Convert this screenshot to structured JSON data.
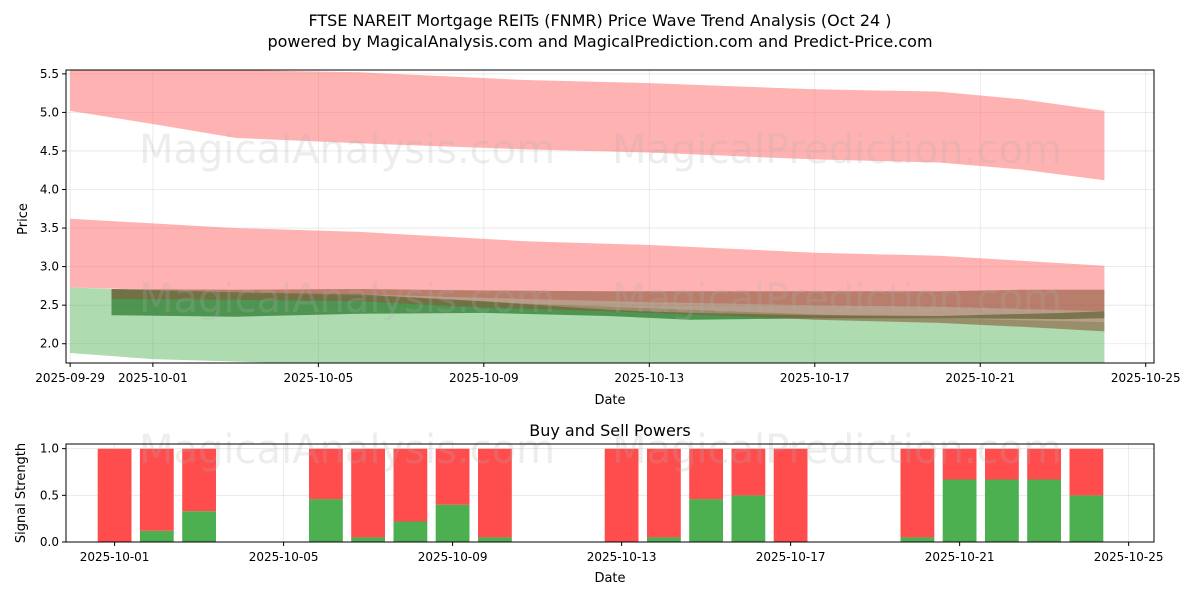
{
  "title": "FTSE NAREIT Mortgage REITs (FNMR) Price Wave Trend Analysis (Oct 24 )",
  "subtitle": "powered by MagicalAnalysis.com and MagicalPrediction.com and Predict-Price.com",
  "watermarks": [
    "MagicalAnalysis.com",
    "MagicalPrediction.com"
  ],
  "chart_data": [
    {
      "type": "area",
      "xlabel": "Date",
      "ylabel": "Price",
      "xlim": [
        "2025-09-29",
        "2025-10-25"
      ],
      "ylim": [
        1.75,
        5.55
      ],
      "x_ticks": [
        "2025-09-29",
        "2025-10-01",
        "2025-10-05",
        "2025-10-09",
        "2025-10-13",
        "2025-10-17",
        "2025-10-21",
        "2025-10-25"
      ],
      "y_ticks": [
        "2.0",
        "2.5",
        "3.0",
        "3.5",
        "4.0",
        "4.5",
        "5.0",
        "5.5"
      ],
      "grid": true,
      "series": [
        {
          "color": "#ff6666",
          "opacity": 0.5,
          "x": [
            "2025-09-29",
            "2025-10-01",
            "2025-10-03",
            "2025-10-06",
            "2025-10-10",
            "2025-10-13",
            "2025-10-17",
            "2025-10-20",
            "2025-10-22",
            "2025-10-24"
          ],
          "upper": [
            5.6,
            5.57,
            5.55,
            5.52,
            5.42,
            5.38,
            5.3,
            5.27,
            5.17,
            5.02
          ],
          "lower": [
            5.02,
            4.85,
            4.67,
            4.6,
            4.52,
            4.48,
            4.39,
            4.35,
            4.26,
            4.12
          ]
        },
        {
          "color": "#ff6666",
          "opacity": 0.5,
          "x": [
            "2025-09-29",
            "2025-10-01",
            "2025-10-03",
            "2025-10-06",
            "2025-10-10",
            "2025-10-13",
            "2025-10-17",
            "2025-10-20",
            "2025-10-24"
          ],
          "upper": [
            3.62,
            3.56,
            3.5,
            3.45,
            3.33,
            3.28,
            3.18,
            3.14,
            3.01
          ],
          "lower": [
            2.73,
            2.7,
            2.67,
            2.64,
            2.58,
            2.54,
            2.5,
            2.48,
            2.42
          ]
        },
        {
          "color": "#4caf50",
          "opacity": 0.45,
          "x": [
            "2025-09-29",
            "2025-10-01",
            "2025-10-06",
            "2025-10-10",
            "2025-10-14",
            "2025-10-17",
            "2025-10-20",
            "2025-10-24"
          ],
          "upper": [
            2.73,
            2.69,
            2.62,
            2.52,
            2.44,
            2.38,
            2.33,
            2.28
          ],
          "lower": [
            1.88,
            1.8,
            1.72,
            1.7,
            1.68,
            1.66,
            1.66,
            1.65
          ]
        },
        {
          "color": "#2e7d32",
          "opacity": 0.75,
          "x": [
            "2025-09-30",
            "2025-10-03",
            "2025-10-06",
            "2025-10-09",
            "2025-10-12",
            "2025-10-14",
            "2025-10-17",
            "2025-10-20",
            "2025-10-23",
            "2025-10-24"
          ],
          "upper": [
            2.71,
            2.67,
            2.64,
            2.55,
            2.44,
            2.4,
            2.37,
            2.36,
            2.4,
            2.42
          ],
          "lower": [
            2.37,
            2.35,
            2.39,
            2.4,
            2.36,
            2.31,
            2.33,
            2.33,
            2.32,
            2.33
          ]
        },
        {
          "color": "#8b5a3c",
          "opacity": 0.6,
          "x": [
            "2025-09-30",
            "2025-10-03",
            "2025-10-06",
            "2025-10-09",
            "2025-10-12",
            "2025-10-15",
            "2025-10-17",
            "2025-10-20",
            "2025-10-22",
            "2025-10-24"
          ],
          "upper": [
            2.71,
            2.7,
            2.71,
            2.69,
            2.68,
            2.68,
            2.68,
            2.68,
            2.7,
            2.7
          ],
          "lower": [
            2.58,
            2.57,
            2.55,
            2.47,
            2.42,
            2.36,
            2.31,
            2.27,
            2.22,
            2.16
          ]
        }
      ]
    },
    {
      "type": "bar",
      "title": "Buy and Sell Powers",
      "xlabel": "Date",
      "ylabel": "Signal Strength",
      "xlim": [
        "2025-09-30",
        "2025-10-25"
      ],
      "ylim": [
        0,
        1.05
      ],
      "x_ticks": [
        "2025-10-01",
        "2025-10-05",
        "2025-10-09",
        "2025-10-13",
        "2025-10-17",
        "2025-10-21",
        "2025-10-25"
      ],
      "y_ticks": [
        "0.0",
        "0.5",
        "1.0"
      ],
      "grid": true,
      "buy_color": "#4caf50",
      "sell_color": "#ff4d4d",
      "dates": [
        "2025-10-01",
        "2025-10-02",
        "2025-10-03",
        "2025-10-06",
        "2025-10-07",
        "2025-10-08",
        "2025-10-09",
        "2025-10-10",
        "2025-10-13",
        "2025-10-14",
        "2025-10-15",
        "2025-10-16",
        "2025-10-17",
        "2025-10-20",
        "2025-10-21",
        "2025-10-22",
        "2025-10-23",
        "2025-10-24"
      ],
      "buy": [
        0.0,
        0.12,
        0.33,
        0.46,
        0.05,
        0.22,
        0.4,
        0.05,
        0.0,
        0.05,
        0.46,
        0.5,
        0.0,
        0.05,
        0.67,
        0.67,
        0.67,
        0.5
      ],
      "sell": [
        1.0,
        0.88,
        0.67,
        0.54,
        0.95,
        0.78,
        0.6,
        0.95,
        1.0,
        0.95,
        0.54,
        0.5,
        1.0,
        0.95,
        0.33,
        0.33,
        0.33,
        0.5
      ]
    }
  ]
}
